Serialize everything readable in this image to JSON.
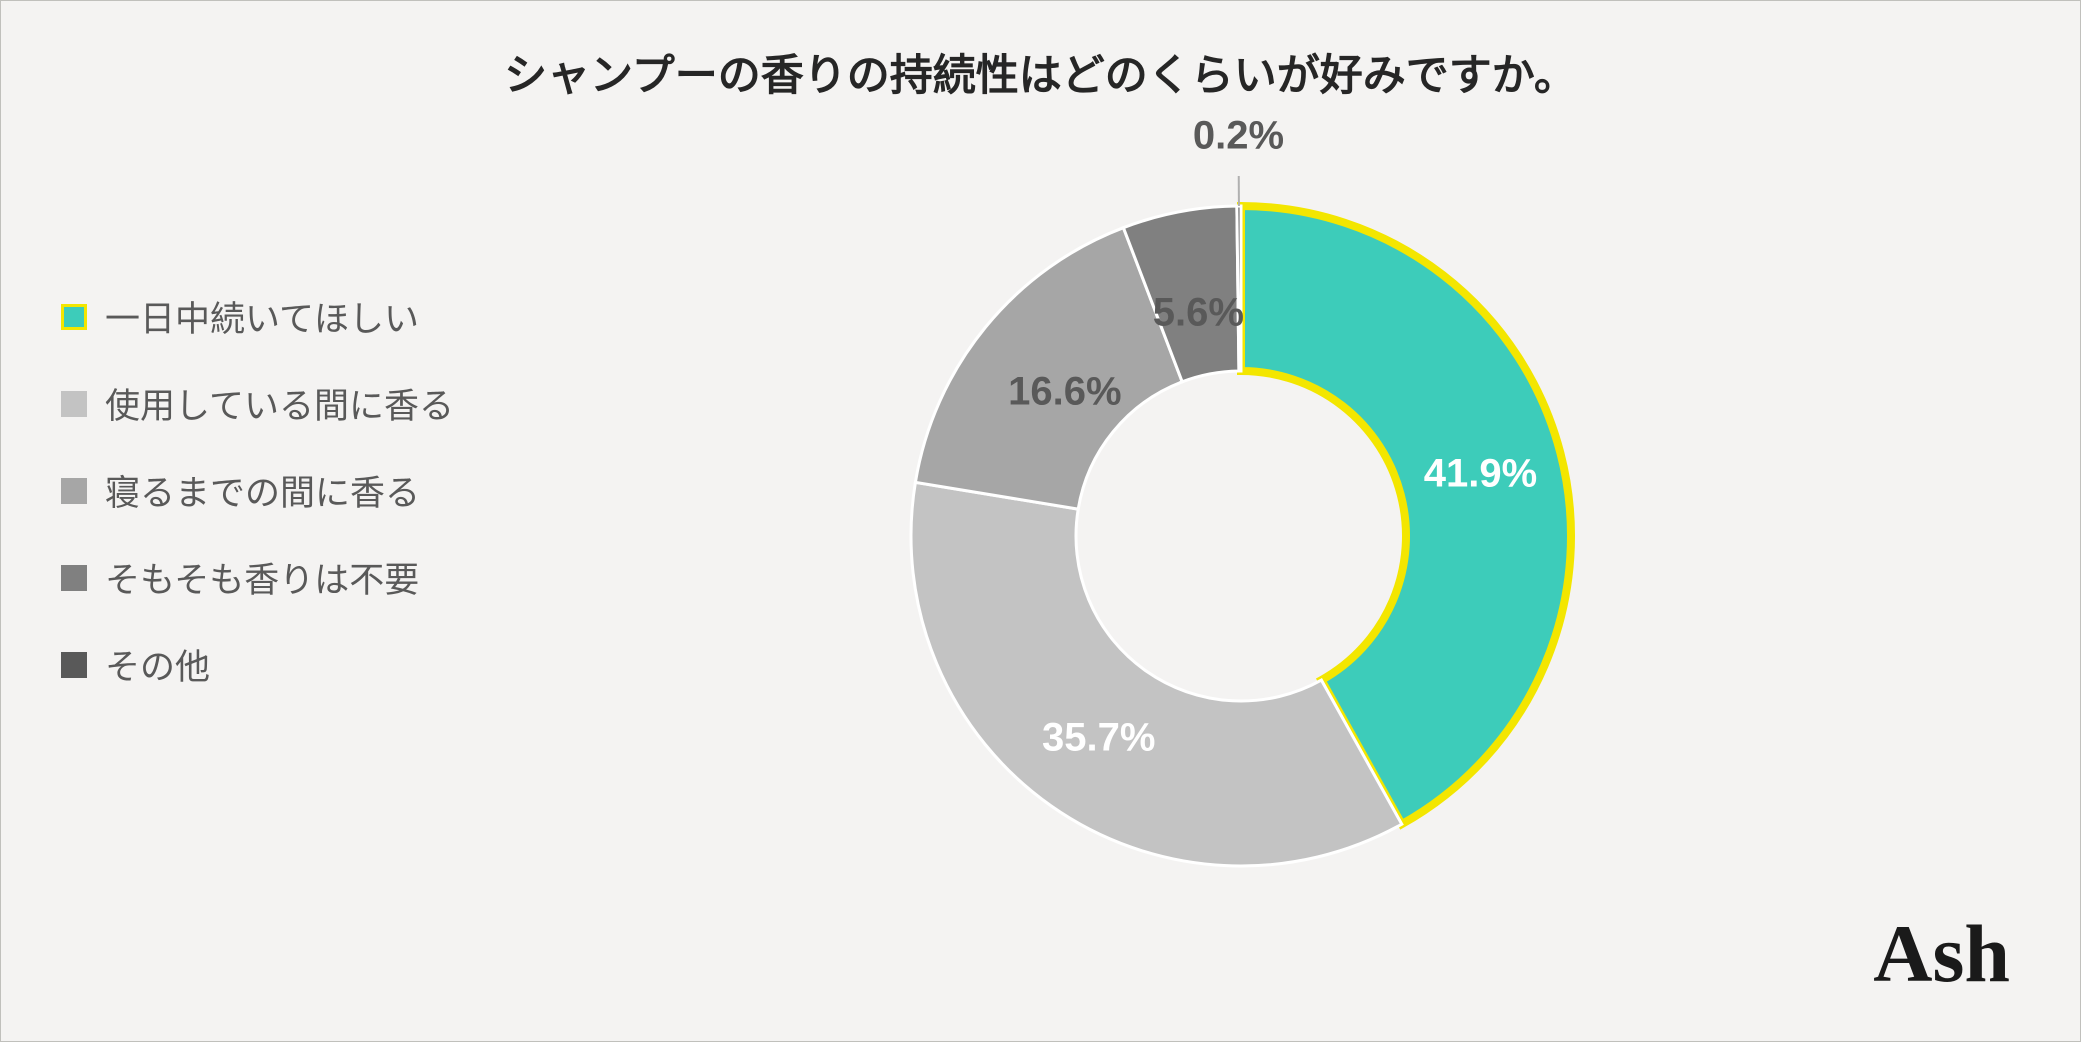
{
  "chart": {
    "type": "donut",
    "title": "シャンプーの香りの持続性はどのくらいが好みですか。",
    "title_fontsize": 43,
    "title_color": "#262626",
    "background_color": "#f4f3f2",
    "border_color": "#c0c0bc",
    "inner_radius_ratio": 0.5,
    "slice_border_color": "#ffffff",
    "slice_border_width": 3,
    "highlight_border_color": "#f3e600",
    "highlight_border_width": 8,
    "series": [
      {
        "label": "一日中続いてほしい",
        "value": 41.9,
        "display": "41.9%",
        "color": "#3dccba",
        "highlighted": true,
        "label_color": "#ffffff"
      },
      {
        "label": "使用している間に香る",
        "value": 35.7,
        "display": "35.7%",
        "color": "#c3c3c3",
        "highlighted": false,
        "label_color": "#ffffff"
      },
      {
        "label": "寝るまでの間に香る",
        "value": 16.6,
        "display": "16.6%",
        "color": "#a6a6a6",
        "highlighted": false,
        "label_color": "#595959"
      },
      {
        "label": "そもそも香りは不要",
        "value": 5.6,
        "display": "5.6%",
        "color": "#808080",
        "highlighted": false,
        "label_color": "#595959"
      },
      {
        "label": "その他",
        "value": 0.2,
        "display": "0.2%",
        "color": "#595959",
        "highlighted": false,
        "label_color": "#595959"
      }
    ],
    "legend": {
      "fontsize": 35,
      "text_color": "#595959",
      "swatch_size": 26
    },
    "data_label_fontsize": 40
  },
  "brand": {
    "text": "Ash",
    "fontsize": 82,
    "color": "#1a1a1a"
  }
}
